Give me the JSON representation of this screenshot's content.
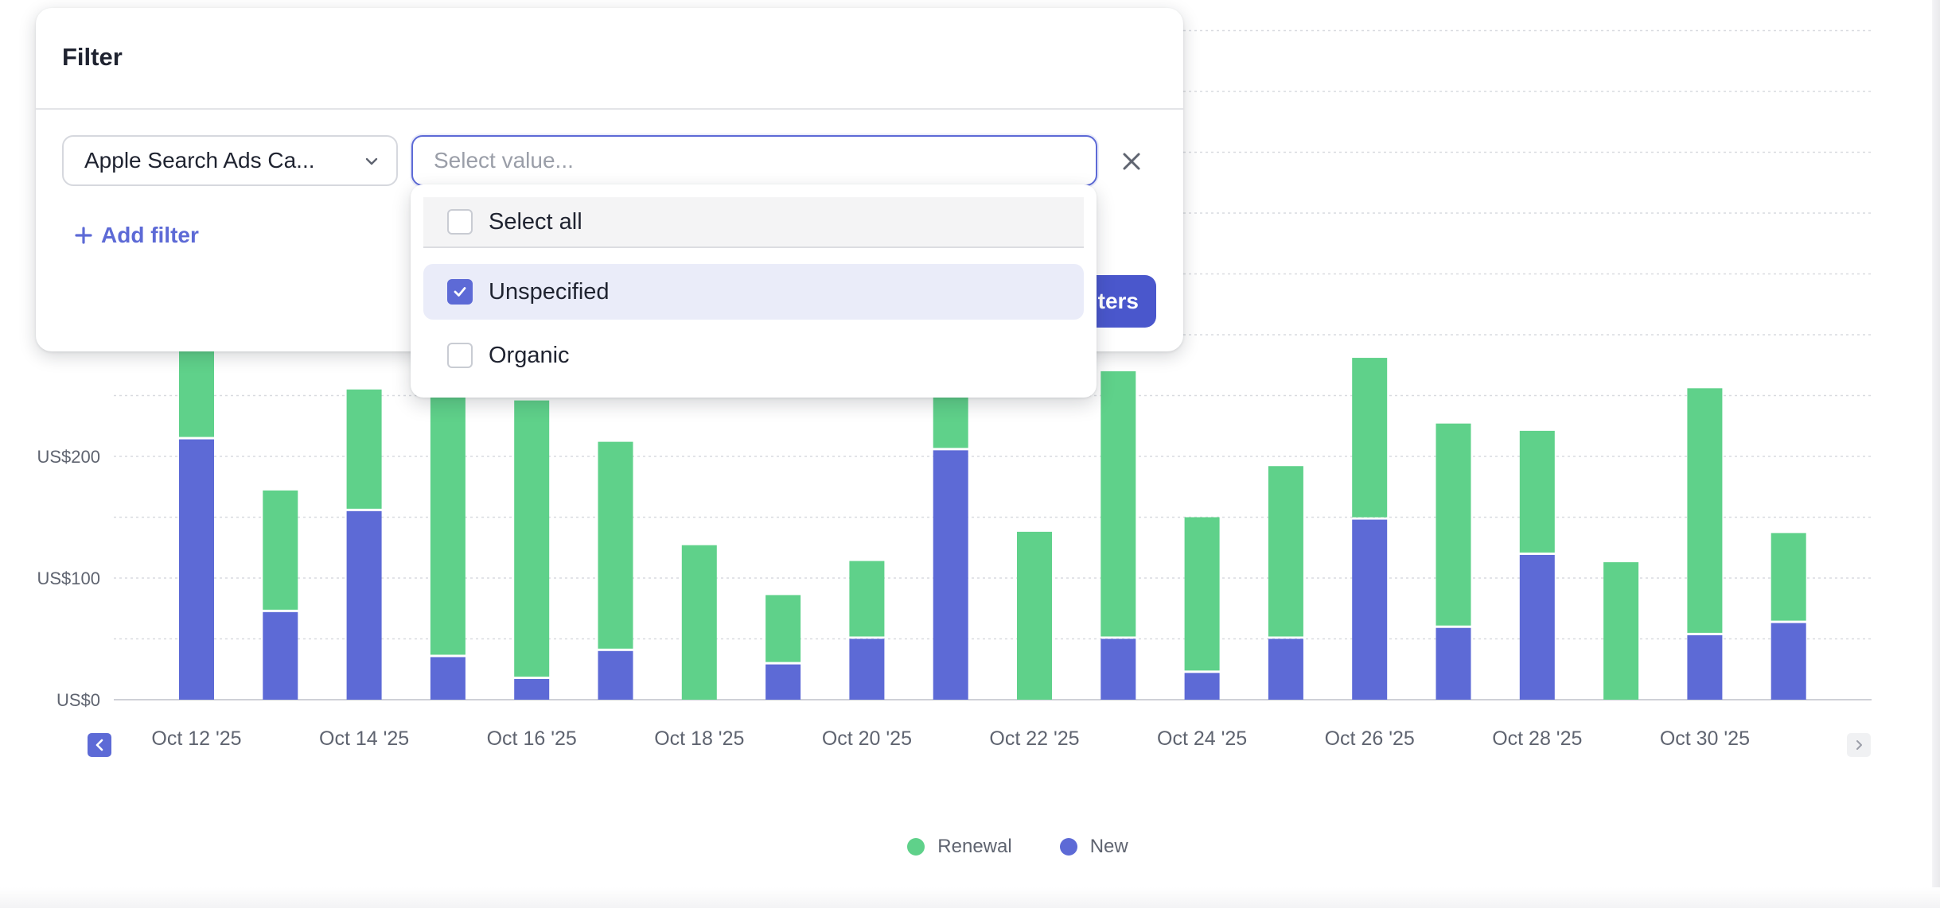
{
  "filter_dialog": {
    "title": "Filter",
    "field_select": {
      "value": "Apple Search Ads Ca..."
    },
    "value_input": {
      "placeholder": "Select value..."
    },
    "add_filter_label": "Add filter",
    "apply_button_label": "Apply Filters",
    "dropdown_options": [
      {
        "label": "Select all",
        "checked": false
      },
      {
        "label": "Unspecified",
        "checked": true
      },
      {
        "label": "Organic",
        "checked": false
      }
    ]
  },
  "chart_data": {
    "type": "bar",
    "stacked": true,
    "x_tick_labels": [
      "Oct 12 '25",
      "Oct 14 '25",
      "Oct 16 '25",
      "Oct 18 '25",
      "Oct 20 '25",
      "Oct 22 '25",
      "Oct 24 '25",
      "Oct 26 '25",
      "Oct 28 '25",
      "Oct 30 '25"
    ],
    "y_tick_labels": [
      "US$0",
      "US$100",
      "US$200"
    ],
    "ylim": [
      0,
      550
    ],
    "grid": true,
    "series": [
      {
        "name": "New",
        "color": "#5d6ad6",
        "values": [
          214,
          72,
          155,
          35,
          17,
          40,
          0,
          29,
          50,
          205,
          0,
          50,
          22,
          50,
          148,
          59,
          119,
          0,
          53,
          63
        ]
      },
      {
        "name": "Renewal",
        "color": "#5fd18a",
        "values": [
          86,
          100,
          100,
          258,
          229,
          172,
          127,
          57,
          64,
          85,
          138,
          220,
          128,
          142,
          133,
          168,
          102,
          113,
          203,
          74
        ]
      }
    ],
    "legend": {
      "placement": "bottom-center",
      "entries": [
        "Renewal",
        "New"
      ]
    }
  }
}
